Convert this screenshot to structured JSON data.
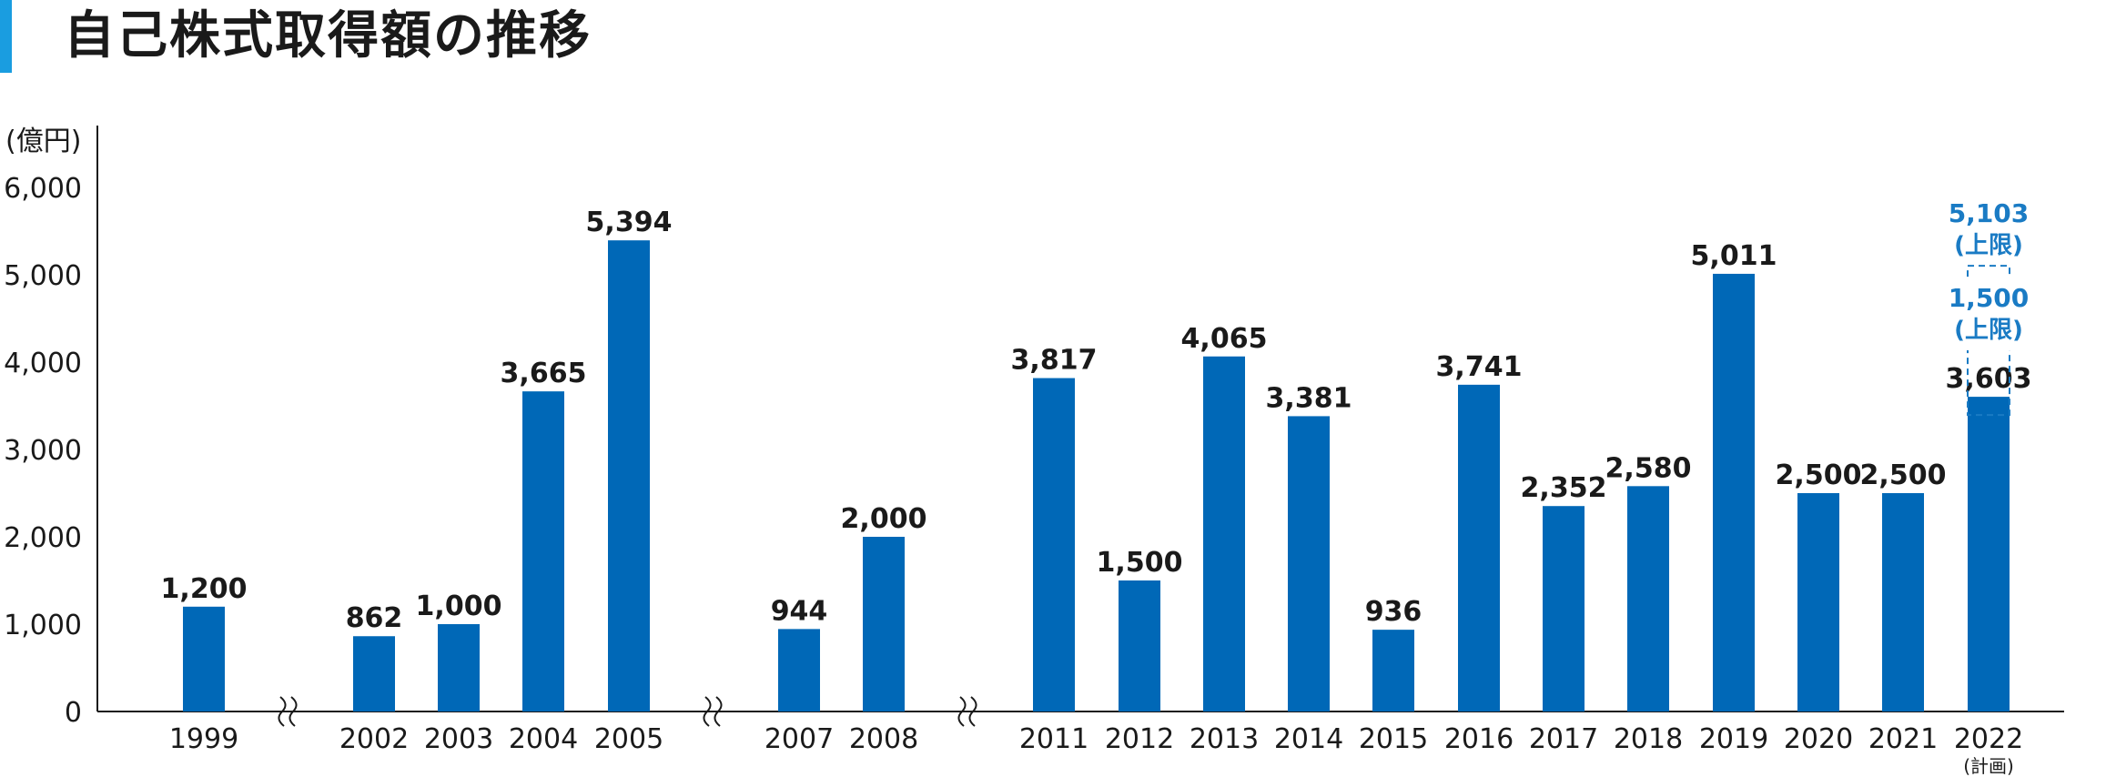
{
  "title": "自己株式取得額の推移",
  "colors": {
    "bar": "#0068b7",
    "label": "#1a1a1a",
    "plan_label": "#1a7bc4",
    "axis": "#1a1a1a",
    "accent": "#1a9de0"
  },
  "chart_data": {
    "type": "bar",
    "title": "自己株式取得額の推移",
    "ylabel": "(億円)",
    "ylim": [
      0,
      6000
    ],
    "yticks": [
      "0",
      "1,000",
      "2,000",
      "3,000",
      "4,000",
      "5,000",
      "6,000"
    ],
    "categories": [
      "1999",
      "2002",
      "2003",
      "2004",
      "2005",
      "2007",
      "2008",
      "2011",
      "2012",
      "2013",
      "2014",
      "2015",
      "2016",
      "2017",
      "2018",
      "2019",
      "2020",
      "2021",
      "2022"
    ],
    "values": [
      1200,
      862,
      1000,
      3665,
      5394,
      944,
      2000,
      3817,
      1500,
      4065,
      3381,
      936,
      3741,
      2352,
      2580,
      5011,
      2500,
      2500,
      3603
    ],
    "value_labels": [
      "1,200",
      "862",
      "1,000",
      "3,665",
      "5,394",
      "944",
      "2,000",
      "3,817",
      "1,500",
      "4,065",
      "3,381",
      "936",
      "3,741",
      "2,352",
      "2,580",
      "5,011",
      "2,500",
      "2,500",
      "3,603"
    ],
    "axis_breaks_after": [
      "1999",
      "2005",
      "2008"
    ],
    "planned": {
      "category": "2022",
      "category_note": "(計画)",
      "upper_limit_total": 5103,
      "upper_limit_total_label": "5,103",
      "additional_upper_limit": 1500,
      "additional_upper_limit_label": "1,500",
      "upper_limit_note": "(上限)"
    },
    "grid": false,
    "legend": "none"
  }
}
